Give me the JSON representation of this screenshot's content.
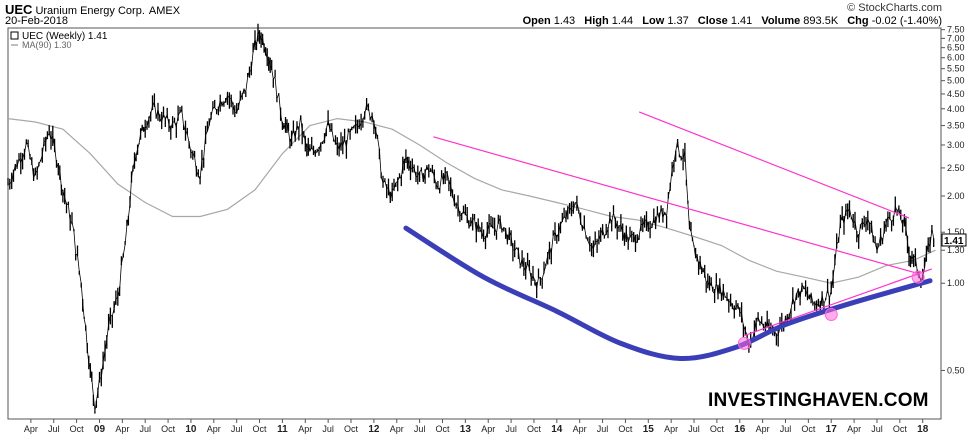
{
  "header": {
    "symbol": "UEC",
    "company": "Uranium Energy Corp.",
    "exchange": "AMEX",
    "date": "20-Feb-2018",
    "copyright": "© StockCharts.com",
    "open_label": "Open",
    "open": "1.43",
    "high_label": "High",
    "high": "1.44",
    "low_label": "Low",
    "low": "1.37",
    "close_label": "Close",
    "close": "1.41",
    "volume_label": "Volume",
    "volume": "893.5K",
    "change_label": "Chg",
    "change": "-0.02 (-1.40%)"
  },
  "legend": {
    "price": "UEC (Weekly) 1.41",
    "ma": "MA(90) 1.30"
  },
  "brand": "INVESTINGHAVEN.COM",
  "colors": {
    "price": "#000000",
    "ma": "#a8a8a8",
    "trend": "#ff33cc",
    "cup": "#3a3fb8",
    "circle": "#ff66dd"
  },
  "chart_data": {
    "type": "line",
    "title": "UEC Uranium Energy Corp. AMEX",
    "scale": "log",
    "ylim": [
      0.34,
      7.6
    ],
    "y_ticks": [
      7.5,
      7.0,
      6.5,
      6.0,
      5.5,
      5.0,
      4.5,
      4.0,
      3.5,
      3.0,
      2.5,
      2.0,
      1.5,
      1.3,
      1.0,
      0.5
    ],
    "x_ticks": [
      "Apr",
      "Jul",
      "Oct",
      "09",
      "Apr",
      "Jul",
      "Oct",
      "10",
      "Apr",
      "Jul",
      "Oct",
      "11",
      "Apr",
      "Jul",
      "Oct",
      "12",
      "Apr",
      "Jul",
      "Oct",
      "13",
      "Apr",
      "Jul",
      "Oct",
      "14",
      "Apr",
      "Jul",
      "Oct",
      "15",
      "Apr",
      "Jul",
      "Oct",
      "16",
      "Apr",
      "Jul",
      "Oct",
      "17",
      "Apr",
      "Jul",
      "Oct",
      "18"
    ],
    "x_range": [
      2008.0,
      2018.2
    ],
    "last_value": 1.41,
    "ma_value": 1.3,
    "series": [
      {
        "name": "UEC (Weekly)",
        "x": [
          2008.0,
          2008.1,
          2008.2,
          2008.3,
          2008.45,
          2008.55,
          2008.6,
          2008.7,
          2008.8,
          2008.85,
          2008.9,
          2008.95,
          2009.0,
          2009.1,
          2009.2,
          2009.3,
          2009.35,
          2009.4,
          2009.45,
          2009.5,
          2009.6,
          2009.7,
          2009.8,
          2009.9,
          2010.0,
          2010.1,
          2010.2,
          2010.3,
          2010.4,
          2010.5,
          2010.6,
          2010.7,
          2010.75,
          2010.8,
          2010.85,
          2010.9,
          2011.0,
          2011.05,
          2011.1,
          2011.2,
          2011.25,
          2011.3,
          2011.4,
          2011.5,
          2011.6,
          2011.7,
          2011.8,
          2011.9,
          2012.0,
          2012.1,
          2012.2,
          2012.3,
          2012.35,
          2012.4,
          2012.5,
          2012.6,
          2012.7,
          2012.8,
          2012.9,
          2013.0,
          2013.2,
          2013.4,
          2013.6,
          2013.8,
          2014.0,
          2014.2,
          2014.4,
          2014.6,
          2014.8,
          2015.0,
          2015.2,
          2015.3,
          2015.4,
          2015.45,
          2015.5,
          2015.55,
          2015.6,
          2015.65,
          2015.8,
          2016.0,
          2016.1,
          2016.2,
          2016.3,
          2016.4,
          2016.5,
          2016.6,
          2016.7,
          2016.8,
          2016.9,
          2017.0,
          2017.1,
          2017.2,
          2017.3,
          2017.4,
          2017.5,
          2017.6,
          2017.7,
          2017.8,
          2017.85,
          2017.9,
          2018.0,
          2018.1,
          2018.14
        ],
        "values": [
          2.2,
          2.6,
          3.0,
          2.3,
          3.4,
          2.6,
          2.1,
          1.6,
          1.0,
          0.7,
          0.5,
          0.38,
          0.45,
          0.7,
          0.9,
          1.5,
          2.2,
          2.9,
          3.2,
          3.6,
          4.0,
          3.7,
          3.5,
          3.8,
          2.9,
          2.4,
          3.6,
          4.2,
          4.5,
          3.9,
          4.7,
          6.6,
          7.3,
          6.8,
          6.1,
          5.3,
          3.7,
          3.4,
          3.1,
          3.6,
          3.0,
          2.8,
          3.0,
          3.5,
          2.9,
          3.1,
          3.4,
          4.0,
          3.8,
          2.2,
          2.0,
          2.4,
          2.7,
          2.6,
          2.3,
          2.5,
          2.2,
          2.3,
          1.9,
          1.7,
          1.5,
          1.6,
          1.2,
          1.0,
          1.5,
          1.9,
          1.3,
          1.7,
          1.4,
          1.6,
          1.8,
          3.0,
          2.7,
          1.5,
          1.3,
          1.2,
          1.1,
          1.0,
          0.95,
          0.8,
          0.62,
          0.75,
          0.7,
          0.68,
          0.75,
          0.9,
          0.95,
          0.85,
          0.88,
          0.95,
          1.6,
          1.8,
          1.5,
          1.7,
          1.3,
          1.6,
          1.8,
          1.6,
          1.3,
          1.2,
          1.05,
          1.5,
          1.41
        ]
      },
      {
        "name": "MA(90)",
        "x": [
          2008.0,
          2008.3,
          2008.6,
          2008.9,
          2009.2,
          2009.5,
          2009.8,
          2010.1,
          2010.4,
          2010.7,
          2011.0,
          2011.3,
          2011.6,
          2011.9,
          2012.2,
          2012.5,
          2012.8,
          2013.1,
          2013.4,
          2013.7,
          2014.0,
          2014.3,
          2014.6,
          2014.9,
          2015.2,
          2015.5,
          2015.8,
          2016.1,
          2016.4,
          2016.7,
          2017.0,
          2017.3,
          2017.6,
          2017.9,
          2018.14
        ],
        "values": [
          3.7,
          3.6,
          3.4,
          2.8,
          2.2,
          1.9,
          1.7,
          1.7,
          1.8,
          2.1,
          2.8,
          3.5,
          3.7,
          3.6,
          3.4,
          3.0,
          2.6,
          2.3,
          2.1,
          2.0,
          1.9,
          1.8,
          1.7,
          1.65,
          1.55,
          1.45,
          1.35,
          1.2,
          1.1,
          1.05,
          1.0,
          1.05,
          1.15,
          1.2,
          1.3
        ]
      }
    ],
    "trend_lines": [
      {
        "from": [
          2014.9,
          3.9
        ],
        "to": [
          2017.85,
          1.68
        ]
      },
      {
        "from": [
          2012.65,
          3.2
        ],
        "to": [
          2017.95,
          1.08
        ]
      },
      {
        "from": [
          2016.05,
          0.66
        ],
        "to": [
          2018.1,
          1.12
        ]
      }
    ],
    "cup_curve": [
      [
        2012.35,
        1.55
      ],
      [
        2013.2,
        1.05
      ],
      [
        2014.0,
        0.8
      ],
      [
        2014.7,
        0.62
      ],
      [
        2015.35,
        0.55
      ],
      [
        2015.95,
        0.6
      ],
      [
        2016.5,
        0.72
      ],
      [
        2017.2,
        0.85
      ],
      [
        2018.08,
        1.02
      ]
    ],
    "touch_points": [
      [
        2016.05,
        0.62
      ],
      [
        2017.0,
        0.78
      ],
      [
        2017.95,
        1.05
      ]
    ]
  }
}
